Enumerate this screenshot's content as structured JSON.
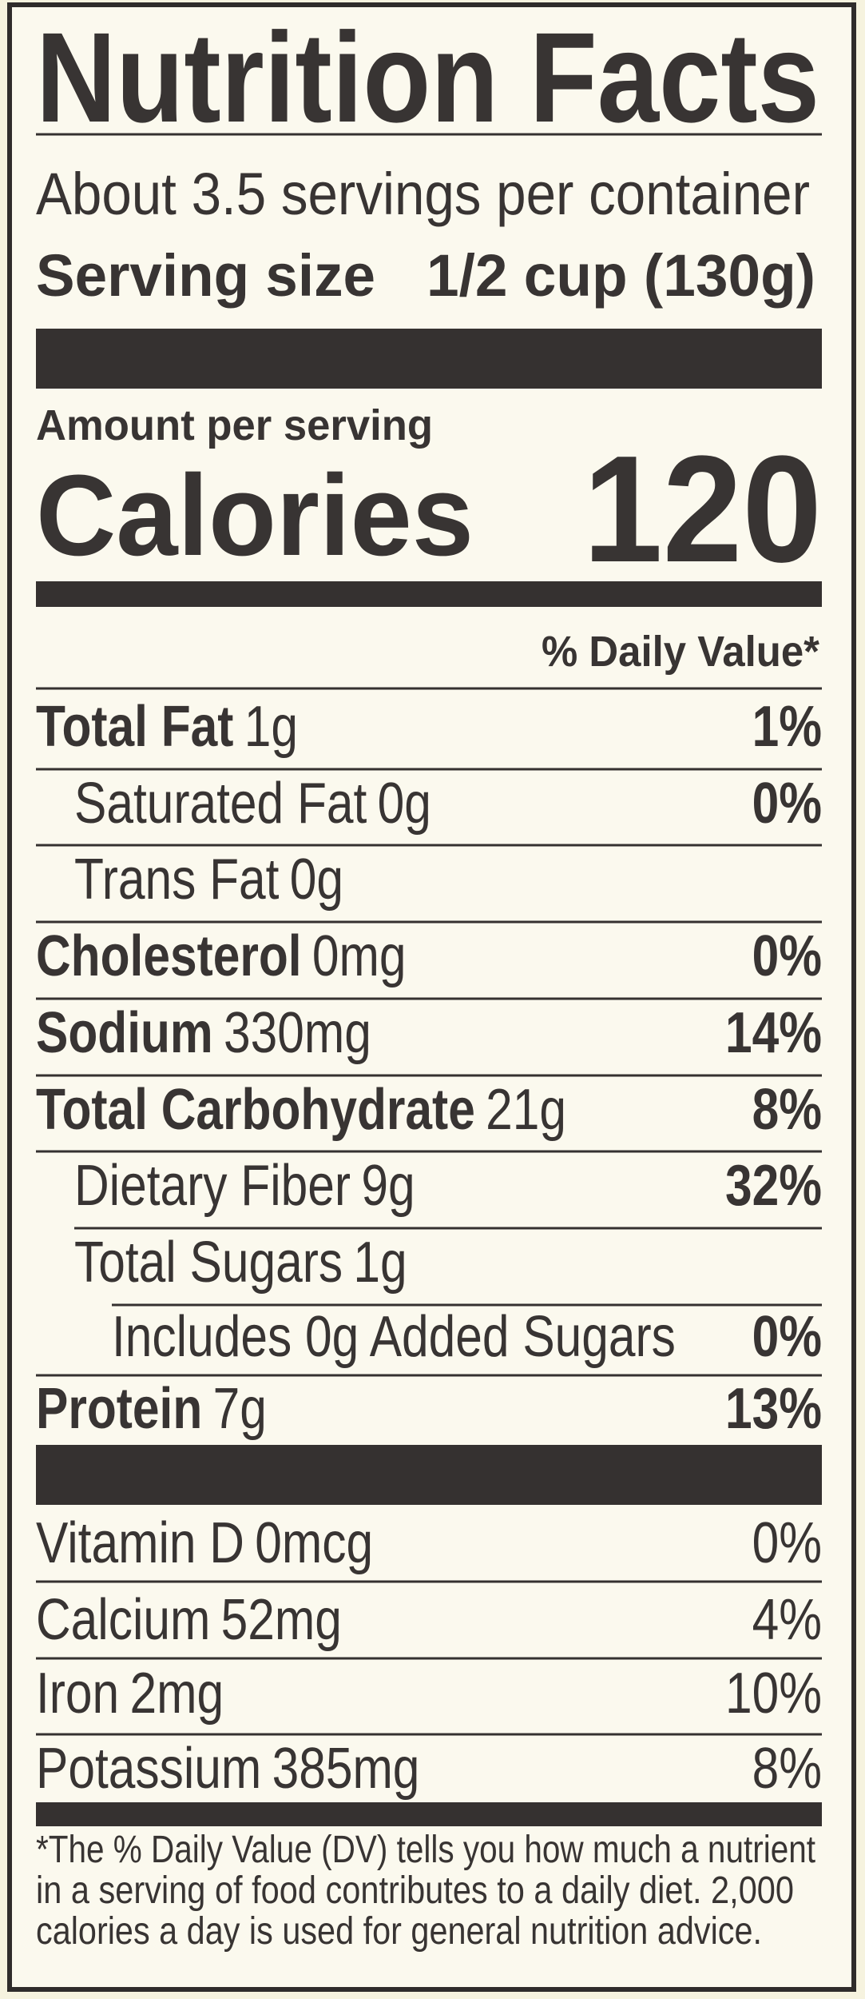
{
  "header": {
    "title": "Nutrition Facts",
    "servings": "About 3.5 servings per container",
    "serving_size_label": "Serving size",
    "serving_size_value": "1/2 cup (130g)"
  },
  "calories": {
    "label_small": "Amount per serving",
    "label": "Calories",
    "value": "120"
  },
  "daily_value_header": "% Daily Value*",
  "nutrients": [
    {
      "name": "Total Fat",
      "amount": "1g",
      "dv": "1%"
    },
    {
      "name": "Saturated Fat",
      "amount": "0g",
      "dv": "0%"
    },
    {
      "name": "Trans Fat",
      "amount": "0g"
    },
    {
      "name": "Cholesterol",
      "amount": "0mg",
      "dv": "0%"
    },
    {
      "name": "Sodium",
      "amount": "330mg",
      "dv": "14%"
    },
    {
      "name": "Total Carbohydrate",
      "amount": "21g",
      "dv": "8%"
    },
    {
      "name": "Dietary Fiber",
      "amount": "9g",
      "dv": "32%"
    },
    {
      "name": "Total Sugars",
      "amount": "1g"
    },
    {
      "name": "Includes 0g Added Sugars",
      "dv": "0%"
    },
    {
      "name": "Protein",
      "amount": "7g",
      "dv": "13%"
    }
  ],
  "vitamins": [
    {
      "name": "Vitamin D",
      "amount": "0mcg",
      "dv": "0%"
    },
    {
      "name": "Calcium",
      "amount": "52mg",
      "dv": "4%"
    },
    {
      "name": "Iron",
      "amount": "2mg",
      "dv": "10%"
    },
    {
      "name": "Potassium",
      "amount": "385mg",
      "dv": "8%"
    }
  ],
  "footnote": [
    "*The % Daily Value (DV) tells you how much a nutrient",
    "in a serving of food contributes to a daily diet. 2,000",
    "calories a day is used for general nutrition advice."
  ]
}
